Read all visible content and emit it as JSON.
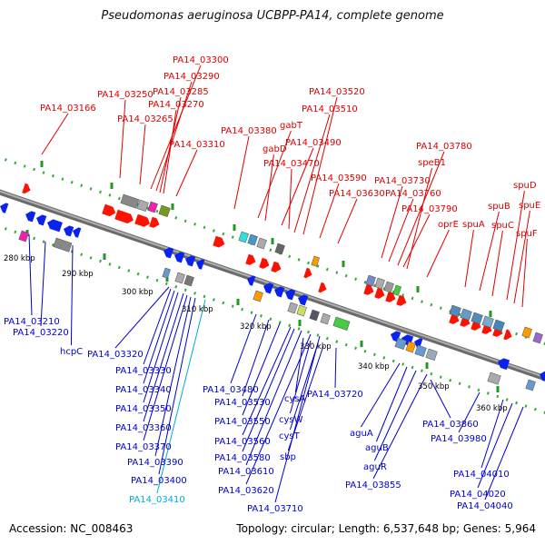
{
  "title": "Pseudomonas aeruginosa UCBPP-PA14, complete genome",
  "footer": {
    "accession": "Accession: NC_008463",
    "topology": "Topology: circular; Length: 6,537,648 bp; Genes: 5,964"
  },
  "colors": {
    "forward_gene": "#ff1100",
    "reverse_gene": "#0a22ee",
    "forward_label": "#dd0000",
    "reverse_label": "#0000cc",
    "highlight_label": "#00aadd",
    "dna": "#8c8c8c",
    "dots": "#33aa33"
  },
  "scale_labels": [
    "280 kbp",
    "290 kbp",
    "300 kbp",
    "310 kbp",
    "320 kbp",
    "330 kbp",
    "340 kbp",
    "350 kbp",
    "360 kbp"
  ],
  "forward_labels": [
    "PA14_03166",
    "PA14_03250",
    "PA14_03265",
    "PA14_03300",
    "PA14_03290",
    "PA14_03285",
    "PA14_03270",
    "PA14_03310",
    "PA14_03380",
    "gabT",
    "gabD",
    "PA14_03490",
    "PA14_03470",
    "PA14_03520",
    "PA14_03510",
    "PA14_03590",
    "PA14_03630",
    "PA14_03730",
    "PA14_03760",
    "PA14_03790",
    "PA14_03780",
    "speB1",
    "oprE",
    "spuA",
    "spuB",
    "spuC",
    "spuD",
    "spuE",
    "spuF"
  ],
  "reverse_labels": [
    "PA14_03210",
    "PA14_03220",
    "hcpC",
    "PA14_03320",
    "PA14_03330",
    "PA14_03340",
    "PA14_03350",
    "PA14_03360",
    "PA14_03370",
    "PA14_03390",
    "PA14_03400",
    "PA14_03410",
    "PA14_03480",
    "PA14_03530",
    "PA14_03550",
    "PA14_03560",
    "PA14_03580",
    "PA14_03610",
    "PA14_03620",
    "PA14_03710",
    "cysA",
    "cysW",
    "cysT",
    "sbp",
    "PA14_03720",
    "aguA",
    "aguB",
    "aguR",
    "PA14_03855",
    "PA14_03860",
    "PA14_03980",
    "PA14_04010",
    "PA14_04020",
    "PA14_04040"
  ]
}
